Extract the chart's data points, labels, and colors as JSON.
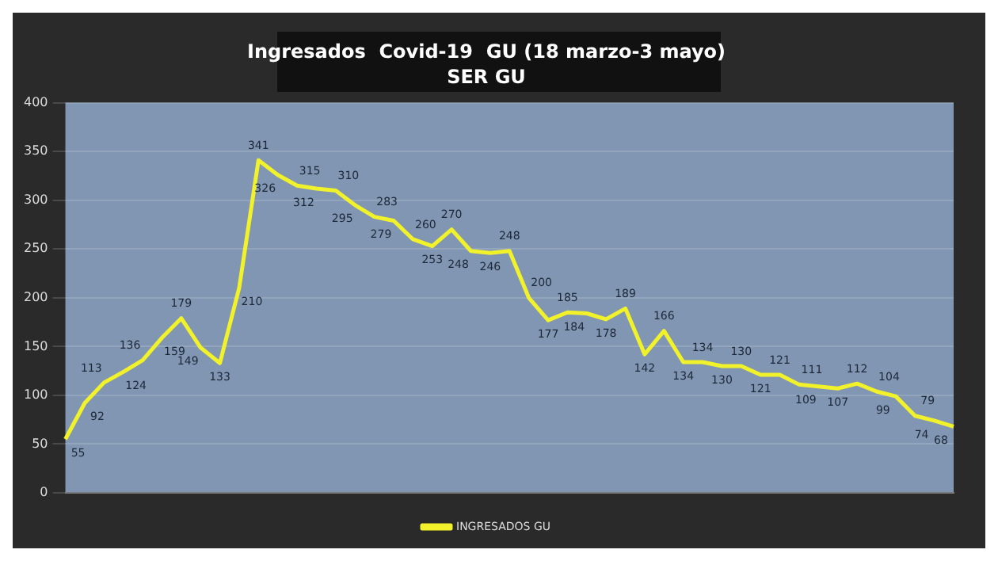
{
  "chart_data": {
    "type": "line",
    "title": "Ingresados  Covid-19  GU (18 marzo-3 mayo)",
    "subtitle": "SER GU",
    "categories": [
      null,
      null,
      null,
      null,
      null,
      null,
      null,
      null,
      null,
      null,
      null,
      null,
      null,
      null,
      null,
      null,
      null,
      null,
      null,
      null,
      null,
      null,
      null,
      null,
      null,
      null,
      null,
      null,
      null,
      null,
      null,
      null,
      null,
      null,
      null,
      null,
      null,
      null,
      null,
      null,
      null,
      null,
      null,
      null,
      null,
      null,
      null
    ],
    "series": [
      {
        "name": "INGRESADOS GU",
        "color": "#f2f22a",
        "values": [
          55,
          92,
          113,
          124,
          136,
          159,
          179,
          149,
          133,
          210,
          341,
          326,
          315,
          312,
          310,
          295,
          283,
          279,
          260,
          253,
          270,
          248,
          246,
          248,
          200,
          177,
          185,
          184,
          178,
          189,
          142,
          166,
          134,
          134,
          130,
          130,
          121,
          121,
          111,
          109,
          107,
          112,
          104,
          99,
          79,
          74,
          68
        ]
      }
    ],
    "ylim": [
      0,
      400
    ],
    "yticks": [
      0,
      50,
      100,
      150,
      200,
      250,
      300,
      350,
      400
    ],
    "grid": "y",
    "legend": "bottom",
    "tick_labels": "y",
    "data_labels": true,
    "marker": "none",
    "line_style": "solid"
  }
}
